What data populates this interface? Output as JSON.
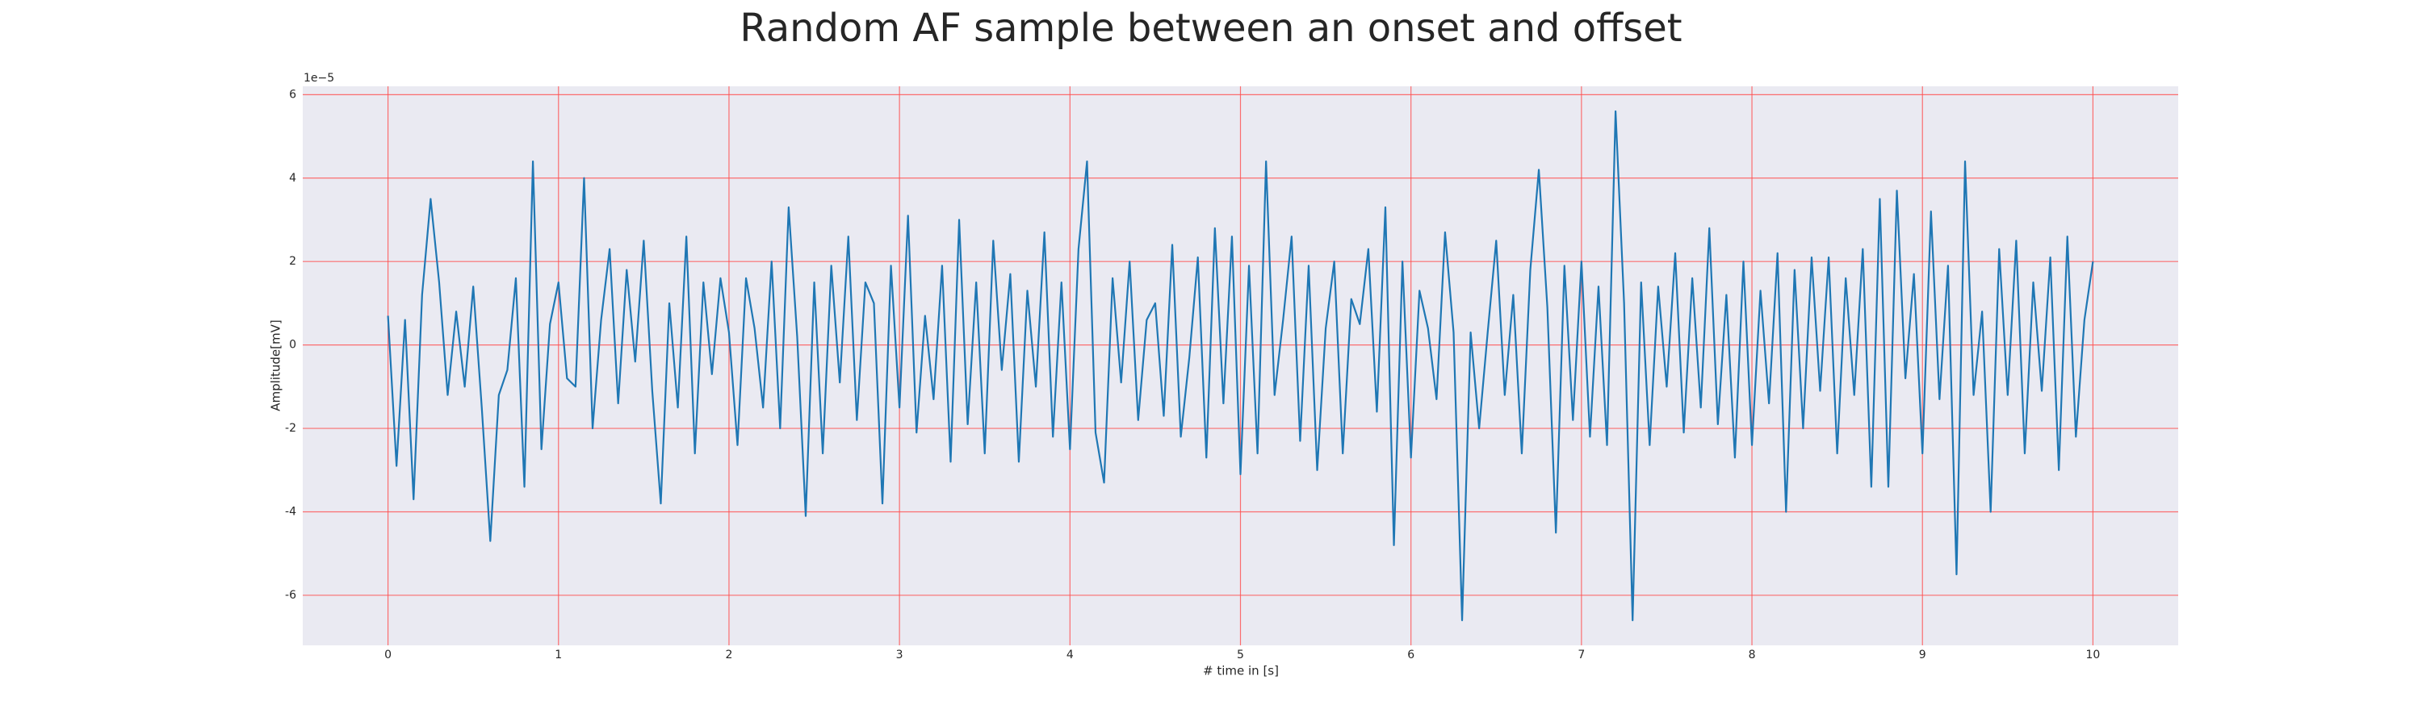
{
  "chart_data": {
    "type": "line",
    "title": "Random AF sample between an onset and offset",
    "x_label": "# time in [s]",
    "y_label": "Amplitude[mV]",
    "y_offset_label": "1e−5",
    "color": "#1f77b4",
    "grid": true,
    "grid_color": "#ff4d4d",
    "background": "#eaeaf2",
    "xlim": [
      -0.5,
      10.5
    ],
    "ylim": [
      -7.2,
      6.2
    ],
    "xticks": [
      0,
      1,
      2,
      3,
      4,
      5,
      6,
      7,
      8,
      9,
      10
    ],
    "yticks": [
      -6,
      -4,
      -2,
      0,
      2,
      4,
      6
    ],
    "x": [
      0,
      0.05,
      0.1,
      0.15,
      0.2,
      0.25,
      0.3,
      0.35,
      0.4,
      0.45,
      0.5,
      0.55,
      0.6,
      0.65,
      0.7,
      0.75,
      0.8,
      0.85,
      0.9,
      0.95,
      1,
      1.05,
      1.1,
      1.15,
      1.2,
      1.25,
      1.3,
      1.35,
      1.4,
      1.45,
      1.5,
      1.55,
      1.6,
      1.65,
      1.7,
      1.75,
      1.8,
      1.85,
      1.9,
      1.95,
      2,
      2.05,
      2.1,
      2.15,
      2.2,
      2.25,
      2.3,
      2.35,
      2.4,
      2.45,
      2.5,
      2.55,
      2.6,
      2.65,
      2.7,
      2.75,
      2.8,
      2.85,
      2.9,
      2.95,
      3,
      3.05,
      3.1,
      3.15,
      3.2,
      3.25,
      3.3,
      3.35,
      3.4,
      3.45,
      3.5,
      3.55,
      3.6,
      3.65,
      3.7,
      3.75,
      3.8,
      3.85,
      3.9,
      3.95,
      4,
      4.05,
      4.1,
      4.15,
      4.2,
      4.25,
      4.3,
      4.35,
      4.4,
      4.45,
      4.5,
      4.55,
      4.6,
      4.65,
      4.7,
      4.75,
      4.8,
      4.85,
      4.9,
      4.95,
      5,
      5.05,
      5.1,
      5.15,
      5.2,
      5.25,
      5.3,
      5.35,
      5.4,
      5.45,
      5.5,
      5.55,
      5.6,
      5.65,
      5.7,
      5.75,
      5.8,
      5.85,
      5.9,
      5.95,
      6,
      6.05,
      6.1,
      6.15,
      6.2,
      6.25,
      6.3,
      6.35,
      6.4,
      6.45,
      6.5,
      6.55,
      6.6,
      6.65,
      6.7,
      6.75,
      6.8,
      6.85,
      6.9,
      6.95,
      7,
      7.05,
      7.1,
      7.15,
      7.2,
      7.25,
      7.3,
      7.35,
      7.4,
      7.45,
      7.5,
      7.55,
      7.6,
      7.65,
      7.7,
      7.75,
      7.8,
      7.85,
      7.9,
      7.95,
      8,
      8.05,
      8.1,
      8.15,
      8.2,
      8.25,
      8.3,
      8.35,
      8.4,
      8.45,
      8.5,
      8.55,
      8.6,
      8.65,
      8.7,
      8.75,
      8.8,
      8.85,
      8.9,
      8.95,
      9,
      9.05,
      9.1,
      9.15,
      9.2,
      9.25,
      9.3,
      9.35,
      9.4,
      9.45,
      9.5,
      9.55,
      9.6,
      9.65,
      9.7,
      9.75,
      9.8,
      9.85,
      9.9,
      9.95,
      10
    ],
    "values": [
      0.7,
      -2.9,
      0.6,
      -3.7,
      1.2,
      3.5,
      1.5,
      -1.2,
      0.8,
      -1.0,
      1.4,
      -1.5,
      -4.7,
      -1.2,
      -0.6,
      1.6,
      -3.4,
      4.4,
      -2.5,
      0.5,
      1.5,
      -0.8,
      -1.0,
      4.0,
      -2.0,
      0.6,
      2.3,
      -1.4,
      1.8,
      -0.4,
      2.5,
      -1.1,
      -3.8,
      1.0,
      -1.5,
      2.6,
      -2.6,
      1.5,
      -0.7,
      1.6,
      0.3,
      -2.4,
      1.6,
      0.4,
      -1.5,
      2.0,
      -2.0,
      3.3,
      0.2,
      -4.1,
      1.5,
      -2.6,
      1.9,
      -0.9,
      2.6,
      -1.8,
      1.5,
      1.0,
      -3.8,
      1.9,
      -1.5,
      3.1,
      -2.1,
      0.7,
      -1.3,
      1.9,
      -2.8,
      3.0,
      -1.9,
      1.5,
      -2.6,
      2.5,
      -0.6,
      1.7,
      -2.8,
      1.3,
      -1.0,
      2.7,
      -2.2,
      1.5,
      -2.5,
      2.3,
      4.4,
      -2.1,
      -3.3,
      1.6,
      -0.9,
      2.0,
      -1.8,
      0.6,
      1.0,
      -1.7,
      2.4,
      -2.2,
      -0.3,
      2.1,
      -2.7,
      2.8,
      -1.4,
      2.6,
      -3.1,
      1.9,
      -2.6,
      4.4,
      -1.2,
      0.6,
      2.6,
      -2.3,
      1.9,
      -3.0,
      0.4,
      2.0,
      -2.6,
      1.1,
      0.5,
      2.3,
      -1.6,
      3.3,
      -4.8,
      2.0,
      -2.7,
      1.3,
      0.4,
      -1.3,
      2.7,
      0.3,
      -6.6,
      0.3,
      -2.0,
      0.3,
      2.5,
      -1.2,
      1.2,
      -2.6,
      1.8,
      4.2,
      0.9,
      -4.5,
      1.9,
      -1.8,
      2.0,
      -2.2,
      1.4,
      -2.4,
      5.6,
      1.0,
      -6.6,
      1.5,
      -2.4,
      1.4,
      -1.0,
      2.2,
      -2.1,
      1.6,
      -1.5,
      2.8,
      -1.9,
      1.2,
      -2.7,
      2.0,
      -2.4,
      1.3,
      -1.4,
      2.2,
      -4.0,
      1.8,
      -2.0,
      2.1,
      -1.1,
      2.1,
      -2.6,
      1.6,
      -1.2,
      2.3,
      -3.4,
      3.5,
      -3.4,
      3.7,
      -0.8,
      1.7,
      -2.6,
      3.2,
      -1.3,
      1.9,
      -5.5,
      4.4,
      -1.2,
      0.8,
      -4.0,
      2.3,
      -1.2,
      2.5,
      -2.6,
      1.5,
      -1.1,
      2.1,
      -3.0,
      2.6,
      -2.2,
      0.6,
      2.0
    ]
  }
}
